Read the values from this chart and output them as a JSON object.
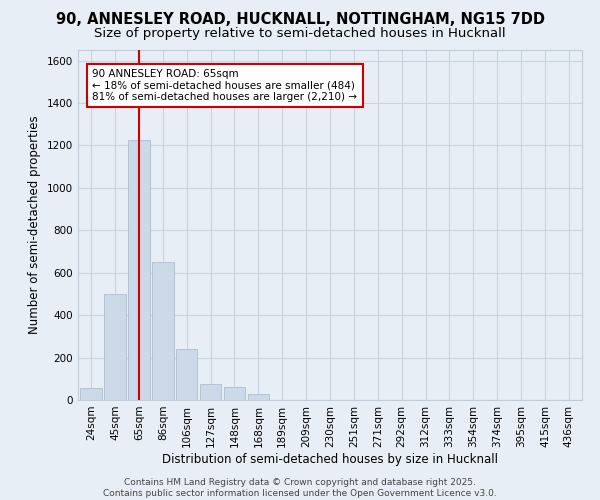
{
  "title_line1": "90, ANNESLEY ROAD, HUCKNALL, NOTTINGHAM, NG15 7DD",
  "title_line2": "Size of property relative to semi-detached houses in Hucknall",
  "xlabel": "Distribution of semi-detached houses by size in Hucknall",
  "ylabel": "Number of semi-detached properties",
  "categories": [
    "24sqm",
    "45sqm",
    "65sqm",
    "86sqm",
    "106sqm",
    "127sqm",
    "148sqm",
    "168sqm",
    "189sqm",
    "209sqm",
    "230sqm",
    "251sqm",
    "271sqm",
    "292sqm",
    "312sqm",
    "333sqm",
    "354sqm",
    "374sqm",
    "395sqm",
    "415sqm",
    "436sqm"
  ],
  "values": [
    55,
    500,
    1225,
    650,
    240,
    75,
    60,
    30,
    0,
    0,
    0,
    0,
    0,
    0,
    0,
    0,
    0,
    0,
    0,
    0,
    0
  ],
  "bar_color": "#ccd9e8",
  "bar_edge_color": "#a8bece",
  "redline_x": 2,
  "annotation_text": "90 ANNESLEY ROAD: 65sqm\n← 18% of semi-detached houses are smaller (484)\n81% of semi-detached houses are larger (2,210) →",
  "annotation_box_color": "#ffffff",
  "annotation_box_edge_color": "#cc0000",
  "redline_color": "#cc0000",
  "ylim": [
    0,
    1650
  ],
  "yticks": [
    0,
    200,
    400,
    600,
    800,
    1000,
    1200,
    1400,
    1600
  ],
  "grid_color": "#c8d4e0",
  "background_color": "#e8eef5",
  "footer_line1": "Contains HM Land Registry data © Crown copyright and database right 2025.",
  "footer_line2": "Contains public sector information licensed under the Open Government Licence v3.0.",
  "title_fontsize": 10.5,
  "subtitle_fontsize": 9.5,
  "axis_label_fontsize": 8.5,
  "tick_fontsize": 7.5,
  "footer_fontsize": 6.5,
  "annot_fontsize": 7.5
}
